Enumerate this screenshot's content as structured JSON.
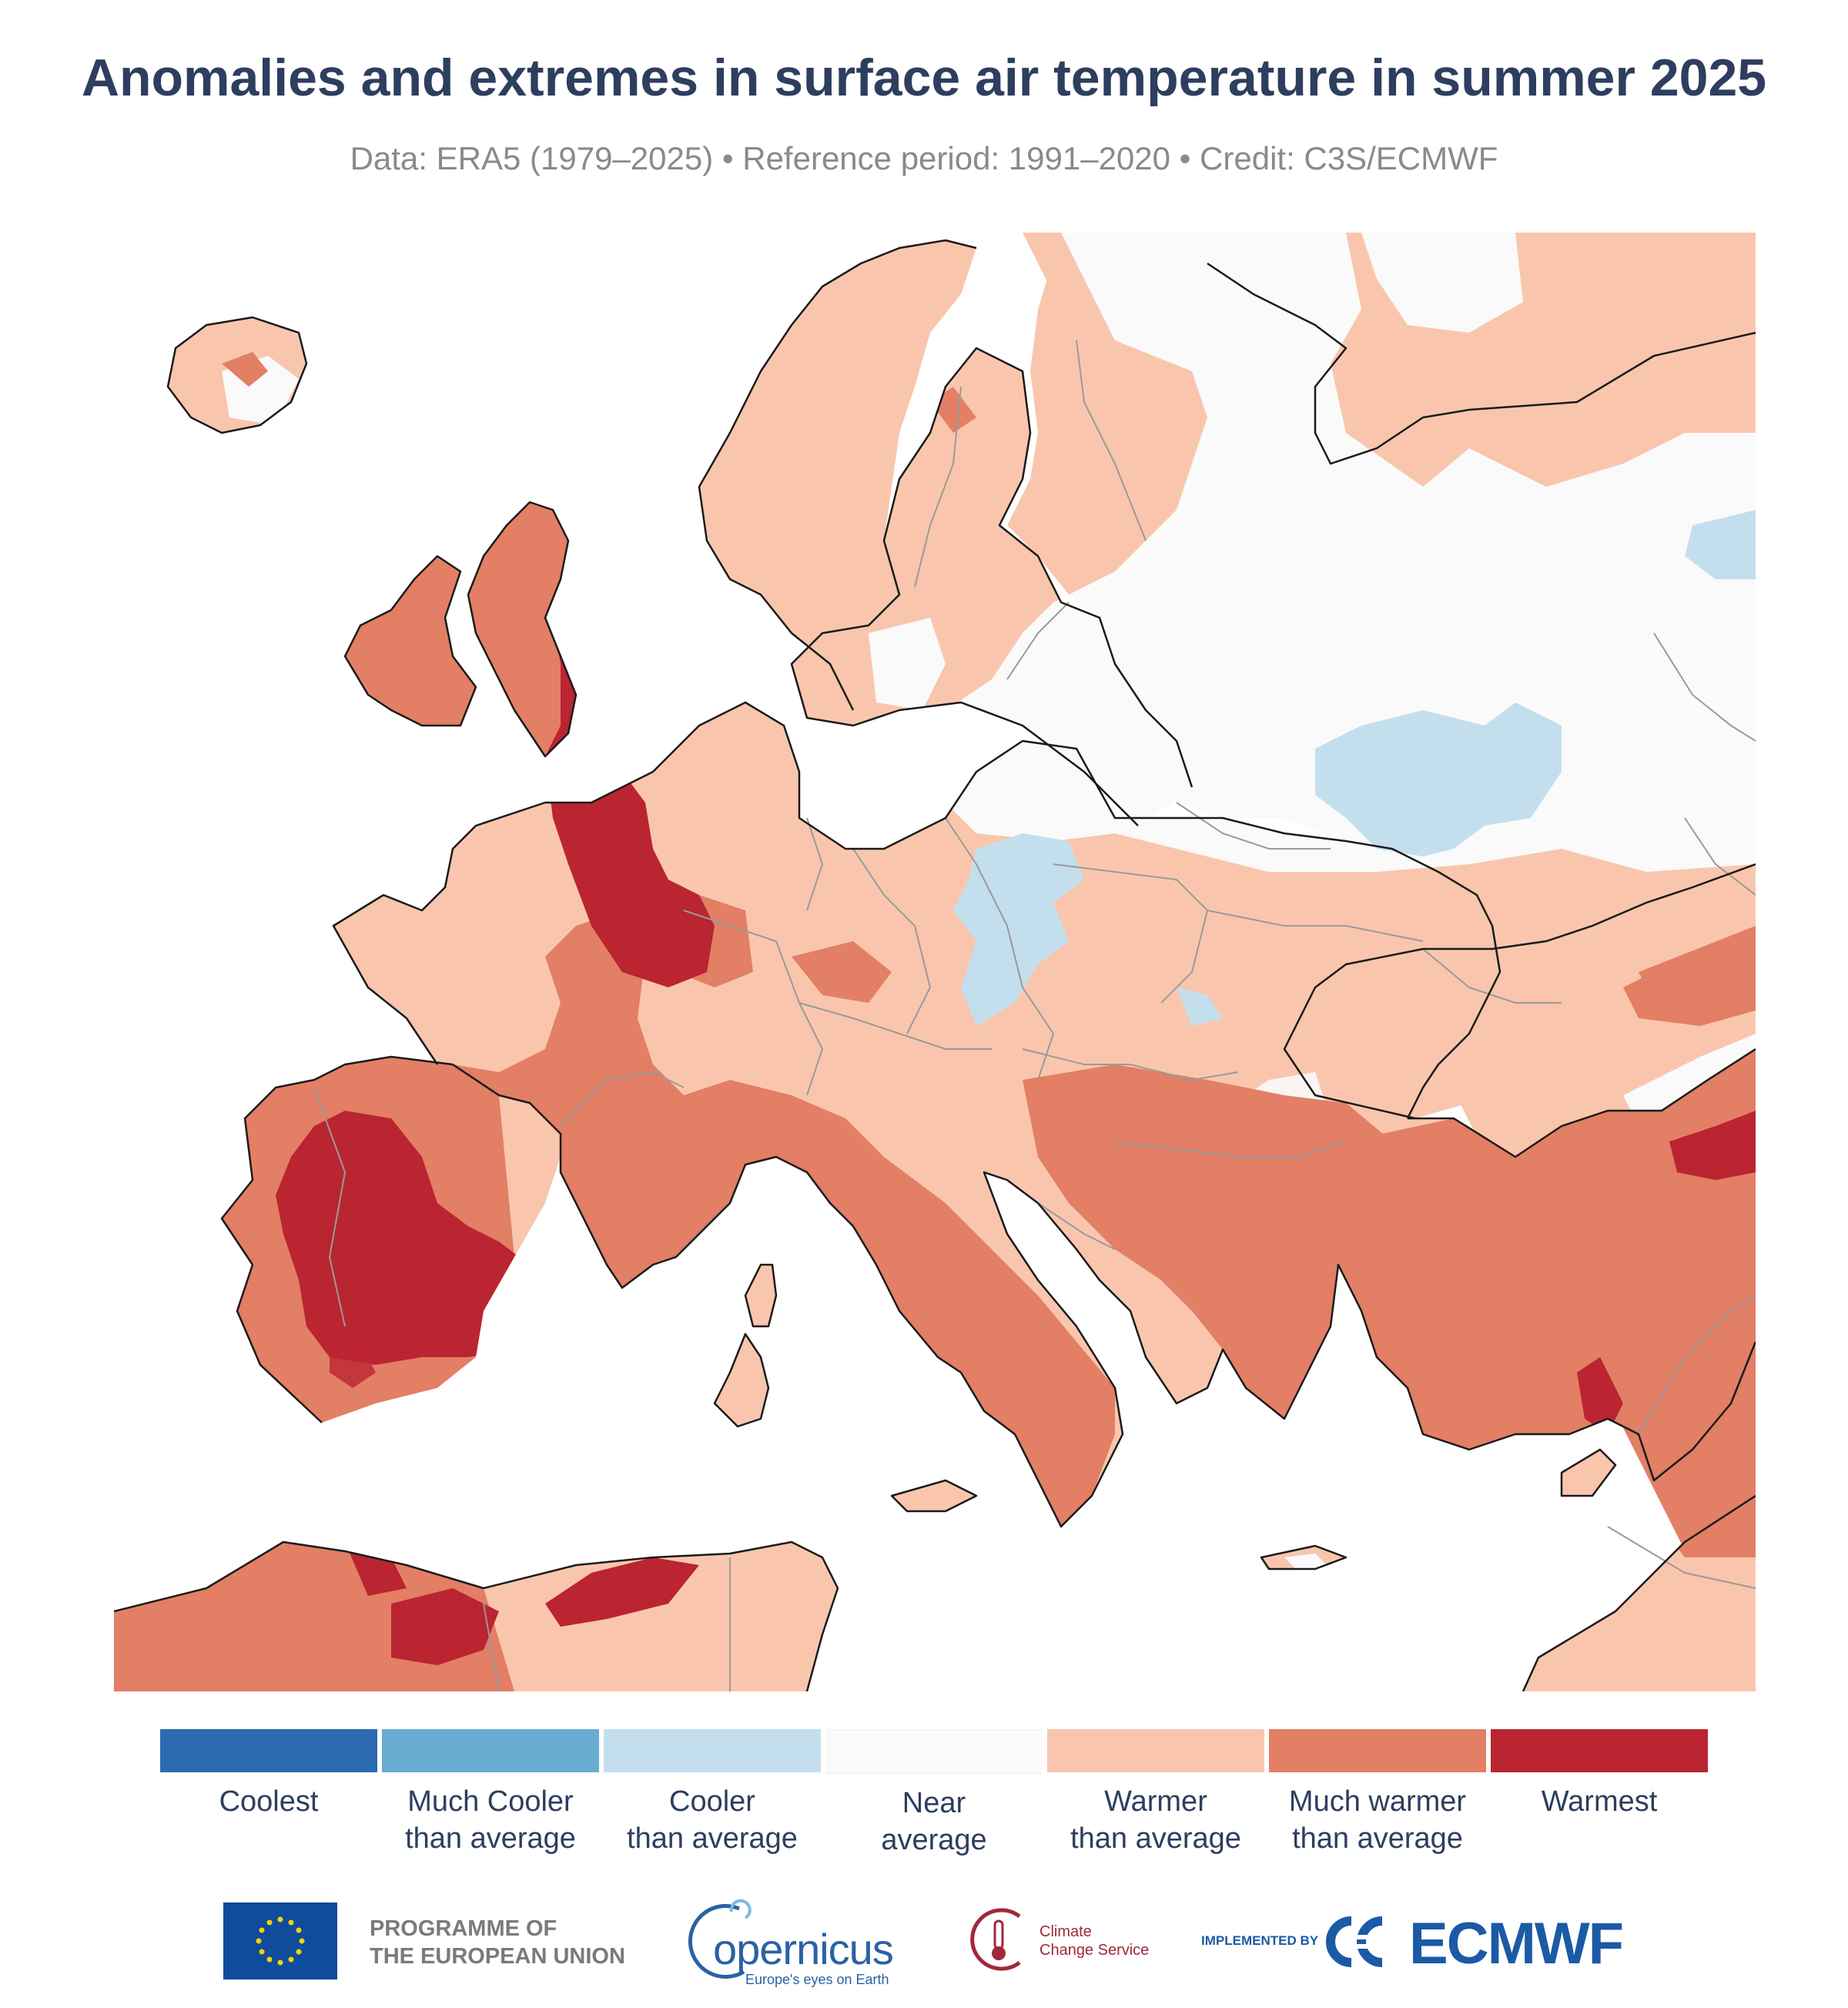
{
  "title": "Anomalies and extremes in surface air temperature in summer 2025",
  "subtitle": "Data: ERA5 (1979–2025) • Reference period: 1991–2020 • Credit: C3S/ECMWF",
  "map": {
    "region": "Europe",
    "colors": {
      "land_base": "#f9c6ad",
      "near": "#fafafa",
      "much_warmer": "#e27f65",
      "warmest": "#bb2431",
      "cooler": "#c3dfee",
      "coastline": "#1a1a1a",
      "border": "#9a9a9a"
    }
  },
  "legend": [
    {
      "label": "Coolest",
      "color": "#2b6bb0"
    },
    {
      "label": "Much Cooler\nthan average",
      "color": "#6aabd1"
    },
    {
      "label": "Cooler\nthan average",
      "color": "#c3dfee"
    },
    {
      "label": "Near\naverage",
      "color": "#fafafa"
    },
    {
      "label": "Warmer\nthan average",
      "color": "#f9c6ad"
    },
    {
      "label": "Much warmer\nthan average",
      "color": "#e27f65"
    },
    {
      "label": "Warmest",
      "color": "#bb2431"
    }
  ],
  "logos": {
    "eu_text": "PROGRAMME OF\nTHE EUROPEAN UNION",
    "copernicus_word": "opernicus",
    "copernicus_tagline": "Europe's eyes on Earth",
    "c3s_text": "Climate\nChange Service",
    "implemented_by": "IMPLEMENTED BY",
    "ecmwf": "ECMWF"
  }
}
